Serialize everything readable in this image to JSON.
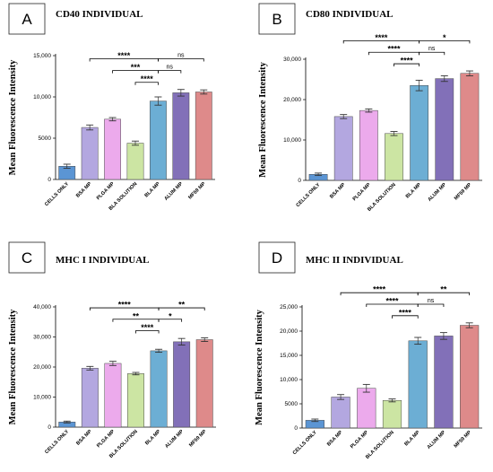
{
  "chart_data": [
    {
      "type": "bar",
      "panel": "A",
      "title": "CD40 INDIVIDUAL",
      "ylabel": "Mean Fluorescence Intensity",
      "xlabel": "",
      "ylim": [
        0,
        15000
      ],
      "yticks": [
        0,
        5000,
        10000,
        15000
      ],
      "ytick_labels": [
        "0",
        "5000",
        "10,000",
        "15,000"
      ],
      "categories": [
        "CELLS ONLY",
        "BSA MP",
        "PLGA MP",
        "BLA SOLUTION",
        "BLA MP",
        "ALUM MP",
        "MF59 MP"
      ],
      "values": [
        1600,
        6300,
        7300,
        4400,
        9500,
        10500,
        10600
      ],
      "errors": [
        250,
        300,
        200,
        250,
        500,
        400,
        250
      ],
      "colors": [
        "#5b95d4",
        "#b3a7e0",
        "#ecaaec",
        "#cce5a3",
        "#6caed4",
        "#8270b8",
        "#de8a8a"
      ],
      "significance": [
        {
          "from": 1,
          "to": 4,
          "label": "****"
        },
        {
          "from": 2,
          "to": 4,
          "label": "***"
        },
        {
          "from": 3,
          "to": 4,
          "label": "****"
        },
        {
          "from": 4,
          "to": 5,
          "label": "ns"
        },
        {
          "from": 4,
          "to": 6,
          "label": "ns"
        }
      ]
    },
    {
      "type": "bar",
      "panel": "B",
      "title": "CD80 INDIVIDUAL",
      "ylabel": "Mean Fluorescence Intensity",
      "xlabel": "",
      "ylim": [
        0,
        30000
      ],
      "yticks": [
        0,
        10000,
        20000,
        30000
      ],
      "ytick_labels": [
        "0",
        "10,000",
        "20,000",
        "30,000"
      ],
      "categories": [
        "CELLS ONLY",
        "BSA MP",
        "PLGA MP",
        "BLA SOLUTION",
        "BLA MP",
        "ALUM MP",
        "MF59 MP"
      ],
      "values": [
        1500,
        15800,
        17300,
        11600,
        23500,
        25200,
        26500
      ],
      "errors": [
        300,
        500,
        400,
        500,
        1300,
        700,
        600
      ],
      "colors": [
        "#5b95d4",
        "#b3a7e0",
        "#ecaaec",
        "#cce5a3",
        "#6caed4",
        "#8270b8",
        "#de8a8a"
      ],
      "significance": [
        {
          "from": 1,
          "to": 4,
          "label": "****"
        },
        {
          "from": 2,
          "to": 4,
          "label": "****"
        },
        {
          "from": 3,
          "to": 4,
          "label": "****"
        },
        {
          "from": 4,
          "to": 5,
          "label": "ns"
        },
        {
          "from": 4,
          "to": 6,
          "label": "*"
        }
      ]
    },
    {
      "type": "bar",
      "panel": "C",
      "title": "MHC I INDIVIDUAL",
      "ylabel": "Mean Fluorescence Intensity",
      "xlabel": "",
      "ylim": [
        0,
        40000
      ],
      "yticks": [
        0,
        10000,
        20000,
        30000,
        40000
      ],
      "ytick_labels": [
        "0",
        "10,000",
        "20,000",
        "30,000",
        "40,000"
      ],
      "categories": [
        "CELLS ONLY",
        "BSA MP",
        "PLGA MP",
        "BLA SOLUTION",
        "BLA MP",
        "ALUM MP",
        "MF59 MP"
      ],
      "values": [
        1700,
        19600,
        21200,
        17800,
        25400,
        28400,
        29100
      ],
      "errors": [
        300,
        600,
        700,
        400,
        500,
        1100,
        600
      ],
      "colors": [
        "#5b95d4",
        "#b3a7e0",
        "#ecaaec",
        "#cce5a3",
        "#6caed4",
        "#8270b8",
        "#de8a8a"
      ],
      "significance": [
        {
          "from": 1,
          "to": 4,
          "label": "****"
        },
        {
          "from": 2,
          "to": 4,
          "label": "**"
        },
        {
          "from": 3,
          "to": 4,
          "label": "****"
        },
        {
          "from": 4,
          "to": 5,
          "label": "*"
        },
        {
          "from": 4,
          "to": 6,
          "label": "**"
        }
      ]
    },
    {
      "type": "bar",
      "panel": "D",
      "title": "MHC II INDIVIDUAL",
      "ylabel": "Mean Fluorescence Intensity",
      "xlabel": "",
      "ylim": [
        0,
        25000
      ],
      "yticks": [
        0,
        5000,
        10000,
        15000,
        20000,
        25000
      ],
      "ytick_labels": [
        "0",
        "5000",
        "10,000",
        "15,000",
        "20,000",
        "25,000"
      ],
      "categories": [
        "CELLS ONLY",
        "BSA MP",
        "PLGA MP",
        "BLA SOLUTION",
        "BLA MP",
        "ALUM MP",
        "MF59 MP"
      ],
      "values": [
        1600,
        6400,
        8200,
        5700,
        18000,
        19000,
        21200
      ],
      "errors": [
        250,
        500,
        800,
        300,
        700,
        700,
        500
      ],
      "colors": [
        "#5b95d4",
        "#b3a7e0",
        "#ecaaec",
        "#cce5a3",
        "#6caed4",
        "#8270b8",
        "#de8a8a"
      ],
      "significance": [
        {
          "from": 1,
          "to": 4,
          "label": "****"
        },
        {
          "from": 2,
          "to": 4,
          "label": "****"
        },
        {
          "from": 3,
          "to": 4,
          "label": "****"
        },
        {
          "from": 4,
          "to": 5,
          "label": "ns"
        },
        {
          "from": 4,
          "to": 6,
          "label": "**"
        }
      ]
    }
  ]
}
